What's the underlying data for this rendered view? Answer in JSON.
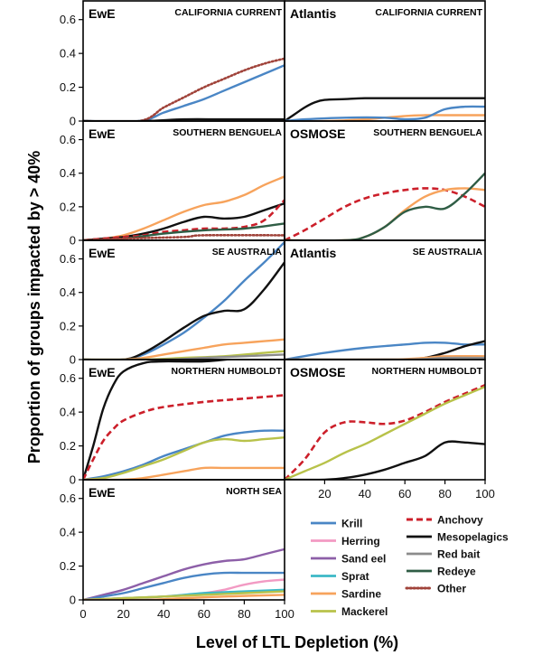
{
  "figure": {
    "ylabel": "Proportion of groups impacted by > 40%",
    "xlabel": "Level of LTL Depletion (%)"
  },
  "legend": [
    {
      "key": "krill",
      "label": "Krill",
      "color": "#4a86c5",
      "dash": "solid"
    },
    {
      "key": "herring",
      "label": "Herring",
      "color": "#f29ac3",
      "dash": "solid"
    },
    {
      "key": "sandeel",
      "label": "Sand eel",
      "color": "#8d5fa8",
      "dash": "solid"
    },
    {
      "key": "sprat",
      "label": "Sprat",
      "color": "#3cb8c6",
      "dash": "solid"
    },
    {
      "key": "sardine",
      "label": "Sardine",
      "color": "#f7a35c",
      "dash": "solid"
    },
    {
      "key": "mackerel",
      "label": "Mackerel",
      "color": "#b8c24a",
      "dash": "solid"
    },
    {
      "key": "anchovy",
      "label": "Anchovy",
      "color": "#cc1f2a",
      "dash": "dashed"
    },
    {
      "key": "meso",
      "label": "Mesopelagics",
      "color": "#111111",
      "dash": "solid"
    },
    {
      "key": "redbait",
      "label": "Red bait",
      "color": "#8c8c8c",
      "dash": "solid"
    },
    {
      "key": "redeye",
      "label": "Redeye",
      "color": "#2f5d45",
      "dash": "solid"
    },
    {
      "key": "other",
      "label": "Other",
      "color": "#a0433a",
      "dash": "dotted"
    }
  ],
  "chart_data": [
    {
      "type": "line",
      "panel": "left-1",
      "model": "EwE",
      "region": "CALIFORNIA CURRENT",
      "xlim": [
        0,
        100
      ],
      "ylim": [
        0,
        0.7
      ],
      "yticks": [
        "0",
        "0.2",
        "0.4",
        "0.6"
      ],
      "xticks": [],
      "series": [
        {
          "key": "krill",
          "x": [
            0,
            28,
            40,
            50,
            60,
            70,
            80,
            90,
            100
          ],
          "y": [
            0,
            0,
            0.05,
            0.09,
            0.13,
            0.18,
            0.23,
            0.28,
            0.33
          ]
        },
        {
          "key": "other",
          "x": [
            0,
            28,
            40,
            50,
            60,
            70,
            80,
            90,
            100
          ],
          "y": [
            0,
            0,
            0.08,
            0.14,
            0.2,
            0.25,
            0.3,
            0.34,
            0.37
          ]
        },
        {
          "key": "meso",
          "x": [
            0,
            30,
            50,
            70,
            100
          ],
          "y": [
            0,
            0,
            0.01,
            0.01,
            0.01
          ]
        }
      ]
    },
    {
      "type": "line",
      "panel": "right-1",
      "model": "Atlantis",
      "region": "CALIFORNIA CURRENT",
      "xlim": [
        0,
        100
      ],
      "ylim": [
        0,
        0.7
      ],
      "yticks": [],
      "xticks": [],
      "series": [
        {
          "key": "meso",
          "x": [
            0,
            5,
            10,
            15,
            20,
            30,
            40,
            60,
            80,
            100
          ],
          "y": [
            0,
            0.04,
            0.08,
            0.11,
            0.125,
            0.13,
            0.135,
            0.135,
            0.135,
            0.135
          ]
        },
        {
          "key": "sardine",
          "x": [
            0,
            20,
            40,
            60,
            70,
            80,
            100
          ],
          "y": [
            0,
            0,
            0.01,
            0.03,
            0.035,
            0.035,
            0.035
          ]
        },
        {
          "key": "krill",
          "x": [
            0,
            10,
            30,
            50,
            60,
            70,
            80,
            90,
            100
          ],
          "y": [
            0,
            0.01,
            0.02,
            0.02,
            0.01,
            0.02,
            0.07,
            0.085,
            0.085
          ]
        }
      ]
    },
    {
      "type": "line",
      "panel": "left-2",
      "model": "EwE",
      "region": "SOUTHERN BENGUELA",
      "xlim": [
        0,
        100
      ],
      "ylim": [
        0,
        0.7
      ],
      "yticks": [
        "0",
        "0.2",
        "0.4",
        "0.6"
      ],
      "xticks": [],
      "series": [
        {
          "key": "sardine",
          "x": [
            0,
            10,
            20,
            30,
            40,
            50,
            60,
            70,
            80,
            90,
            100
          ],
          "y": [
            0,
            0.01,
            0.03,
            0.07,
            0.12,
            0.17,
            0.21,
            0.23,
            0.27,
            0.33,
            0.38
          ]
        },
        {
          "key": "meso",
          "x": [
            0,
            10,
            20,
            30,
            40,
            50,
            60,
            70,
            80,
            90,
            100
          ],
          "y": [
            0,
            0.01,
            0.02,
            0.04,
            0.07,
            0.11,
            0.14,
            0.13,
            0.14,
            0.18,
            0.22
          ]
        },
        {
          "key": "anchovy",
          "x": [
            0,
            20,
            30,
            40,
            50,
            60,
            70,
            80,
            90,
            100
          ],
          "y": [
            0,
            0.02,
            0.03,
            0.05,
            0.06,
            0.07,
            0.07,
            0.08,
            0.12,
            0.24
          ]
        },
        {
          "key": "redeye",
          "x": [
            0,
            20,
            40,
            60,
            80,
            100
          ],
          "y": [
            0,
            0.01,
            0.04,
            0.06,
            0.07,
            0.1
          ]
        },
        {
          "key": "other",
          "x": [
            0,
            20,
            50,
            60,
            100
          ],
          "y": [
            0,
            0.01,
            0.02,
            0.03,
            0.03
          ]
        }
      ]
    },
    {
      "type": "line",
      "panel": "right-2",
      "model": "OSMOSE",
      "region": "SOUTHERN BENGUELA",
      "xlim": [
        0,
        100
      ],
      "ylim": [
        0,
        0.7
      ],
      "yticks": [],
      "xticks": [],
      "series": [
        {
          "key": "anchovy",
          "x": [
            0,
            10,
            20,
            30,
            40,
            50,
            60,
            70,
            80,
            90,
            100
          ],
          "y": [
            0,
            0.06,
            0.13,
            0.2,
            0.25,
            0.28,
            0.3,
            0.31,
            0.3,
            0.26,
            0.2
          ]
        },
        {
          "key": "sardine",
          "x": [
            0,
            30,
            40,
            50,
            60,
            70,
            80,
            90,
            100
          ],
          "y": [
            0,
            0,
            0.02,
            0.08,
            0.18,
            0.26,
            0.3,
            0.31,
            0.3
          ]
        },
        {
          "key": "redeye",
          "x": [
            0,
            30,
            40,
            50,
            60,
            70,
            80,
            90,
            100
          ],
          "y": [
            0,
            0,
            0.02,
            0.08,
            0.17,
            0.2,
            0.19,
            0.28,
            0.4
          ]
        }
      ]
    },
    {
      "type": "line",
      "panel": "left-3",
      "model": "EwE",
      "region": "SE AUSTRALIA",
      "xlim": [
        0,
        100
      ],
      "ylim": [
        0,
        0.7
      ],
      "yticks": [
        "0",
        "0.2",
        "0.4",
        "0.6"
      ],
      "xticks": [],
      "series": [
        {
          "key": "krill",
          "x": [
            0,
            20,
            30,
            40,
            50,
            60,
            70,
            80,
            90,
            100
          ],
          "y": [
            0,
            0,
            0.03,
            0.09,
            0.16,
            0.25,
            0.35,
            0.47,
            0.58,
            0.7
          ]
        },
        {
          "key": "meso",
          "x": [
            0,
            20,
            30,
            40,
            50,
            60,
            70,
            80,
            90,
            100
          ],
          "y": [
            0,
            0,
            0.04,
            0.11,
            0.19,
            0.26,
            0.29,
            0.3,
            0.42,
            0.58
          ]
        },
        {
          "key": "sardine",
          "x": [
            0,
            20,
            30,
            40,
            50,
            60,
            70,
            80,
            90,
            100
          ],
          "y": [
            0,
            0,
            0.01,
            0.03,
            0.05,
            0.07,
            0.09,
            0.1,
            0.11,
            0.12
          ]
        },
        {
          "key": "mackerel",
          "x": [
            0,
            30,
            50,
            70,
            90,
            100
          ],
          "y": [
            0,
            0,
            0.01,
            0.02,
            0.04,
            0.05
          ]
        },
        {
          "key": "redbait",
          "x": [
            0,
            40,
            60,
            80,
            100
          ],
          "y": [
            0,
            0,
            0.01,
            0.02,
            0.03
          ]
        }
      ]
    },
    {
      "type": "line",
      "panel": "right-3",
      "model": "Atlantis",
      "region": "SE AUSTRALIA",
      "xlim": [
        0,
        100
      ],
      "ylim": [
        0,
        0.7
      ],
      "yticks": [],
      "xticks": [],
      "series": [
        {
          "key": "krill",
          "x": [
            0,
            20,
            40,
            60,
            70,
            80,
            90,
            100
          ],
          "y": [
            0,
            0.04,
            0.07,
            0.09,
            0.1,
            0.1,
            0.09,
            0.09
          ]
        },
        {
          "key": "meso",
          "x": [
            0,
            60,
            70,
            80,
            90,
            100
          ],
          "y": [
            0,
            0,
            0.01,
            0.04,
            0.08,
            0.11
          ]
        },
        {
          "key": "sardine",
          "x": [
            0,
            50,
            70,
            80,
            100
          ],
          "y": [
            0,
            0,
            0.01,
            0.02,
            0.02
          ]
        },
        {
          "key": "redbait",
          "x": [
            0,
            60,
            80,
            100
          ],
          "y": [
            0,
            0,
            0.01,
            0.01
          ]
        }
      ]
    },
    {
      "type": "line",
      "panel": "left-4",
      "model": "EwE",
      "region": "NORTHERN HUMBOLDT",
      "xlim": [
        0,
        100
      ],
      "ylim": [
        0,
        0.7
      ],
      "yticks": [
        "0",
        "0.2",
        "0.4",
        "0.6"
      ],
      "xticks": [],
      "series": [
        {
          "key": "meso",
          "x": [
            0,
            5,
            10,
            15,
            20,
            30,
            40,
            60,
            80,
            100
          ],
          "y": [
            0,
            0.2,
            0.42,
            0.56,
            0.64,
            0.69,
            0.7,
            0.7,
            0.72,
            0.72
          ]
        },
        {
          "key": "anchovy",
          "x": [
            0,
            5,
            10,
            15,
            20,
            30,
            40,
            60,
            80,
            100
          ],
          "y": [
            0,
            0.12,
            0.23,
            0.3,
            0.35,
            0.4,
            0.43,
            0.46,
            0.48,
            0.5
          ]
        },
        {
          "key": "krill",
          "x": [
            0,
            10,
            20,
            30,
            40,
            50,
            60,
            70,
            80,
            90,
            100
          ],
          "y": [
            0,
            0.02,
            0.05,
            0.09,
            0.14,
            0.18,
            0.22,
            0.26,
            0.28,
            0.29,
            0.29
          ]
        },
        {
          "key": "mackerel",
          "x": [
            0,
            10,
            20,
            30,
            40,
            50,
            60,
            70,
            80,
            90,
            100
          ],
          "y": [
            0,
            0.01,
            0.04,
            0.08,
            0.12,
            0.17,
            0.22,
            0.24,
            0.23,
            0.24,
            0.25
          ]
        },
        {
          "key": "sardine",
          "x": [
            0,
            20,
            30,
            40,
            50,
            60,
            70,
            80,
            100
          ],
          "y": [
            0,
            0,
            0.01,
            0.03,
            0.05,
            0.07,
            0.07,
            0.07,
            0.07
          ]
        }
      ]
    },
    {
      "type": "line",
      "panel": "right-4",
      "model": "OSMOSE",
      "region": "NORTHERN HUMBOLDT",
      "xlim": [
        0,
        100
      ],
      "ylim": [
        0,
        0.7
      ],
      "yticks": [],
      "xticks": [
        "20",
        "40",
        "60",
        "80",
        "100"
      ],
      "series": [
        {
          "key": "anchovy",
          "x": [
            0,
            10,
            20,
            30,
            40,
            50,
            60,
            70,
            80,
            90,
            100
          ],
          "y": [
            0,
            0.12,
            0.28,
            0.34,
            0.34,
            0.33,
            0.35,
            0.4,
            0.46,
            0.51,
            0.56
          ]
        },
        {
          "key": "mackerel",
          "x": [
            0,
            10,
            20,
            30,
            40,
            50,
            60,
            70,
            80,
            90,
            100
          ],
          "y": [
            0,
            0.05,
            0.1,
            0.16,
            0.21,
            0.27,
            0.33,
            0.39,
            0.45,
            0.5,
            0.55
          ]
        },
        {
          "key": "meso",
          "x": [
            0,
            20,
            30,
            40,
            50,
            60,
            70,
            80,
            90,
            100
          ],
          "y": [
            0,
            0,
            0.01,
            0.03,
            0.06,
            0.1,
            0.14,
            0.22,
            0.22,
            0.21
          ]
        }
      ]
    },
    {
      "type": "line",
      "panel": "left-5",
      "model": "EwE",
      "region": "NORTH SEA",
      "xlim": [
        0,
        100
      ],
      "ylim": [
        0,
        0.7
      ],
      "yticks": [
        "0",
        "0.2",
        "0.4",
        "0.6"
      ],
      "xticks": [
        "0",
        "20",
        "40",
        "60",
        "80",
        "100"
      ],
      "series": [
        {
          "key": "sandeel",
          "x": [
            0,
            10,
            20,
            30,
            40,
            50,
            60,
            70,
            80,
            90,
            100
          ],
          "y": [
            0,
            0.03,
            0.06,
            0.1,
            0.14,
            0.18,
            0.21,
            0.23,
            0.24,
            0.27,
            0.3
          ]
        },
        {
          "key": "krill",
          "x": [
            0,
            10,
            20,
            30,
            40,
            50,
            60,
            70,
            80,
            90,
            100
          ],
          "y": [
            0,
            0.02,
            0.04,
            0.07,
            0.1,
            0.13,
            0.15,
            0.16,
            0.16,
            0.16,
            0.16
          ]
        },
        {
          "key": "herring",
          "x": [
            0,
            20,
            40,
            60,
            70,
            80,
            90,
            100
          ],
          "y": [
            0,
            0.01,
            0.02,
            0.04,
            0.06,
            0.09,
            0.11,
            0.12
          ]
        },
        {
          "key": "sprat",
          "x": [
            0,
            20,
            40,
            60,
            80,
            100
          ],
          "y": [
            0,
            0.01,
            0.02,
            0.04,
            0.05,
            0.06
          ]
        },
        {
          "key": "mackerel",
          "x": [
            0,
            20,
            40,
            60,
            80,
            100
          ],
          "y": [
            0,
            0.01,
            0.02,
            0.03,
            0.04,
            0.05
          ]
        },
        {
          "key": "sardine",
          "x": [
            0,
            30,
            50,
            70,
            100
          ],
          "y": [
            0,
            0,
            0.01,
            0.02,
            0.03
          ]
        }
      ]
    }
  ]
}
